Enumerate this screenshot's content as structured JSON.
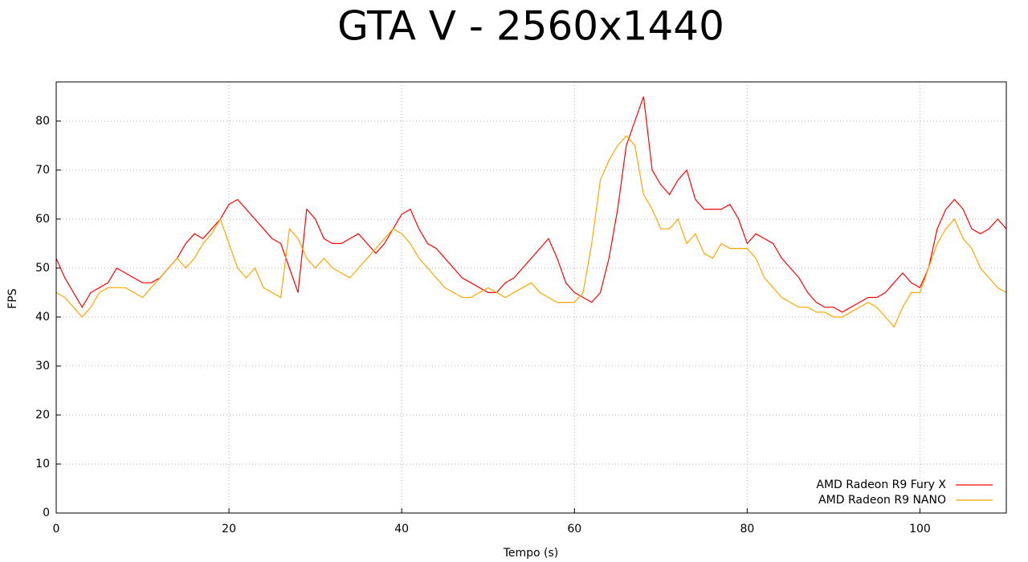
{
  "chart_data": {
    "type": "line",
    "title": "GTA V - 2560x1440",
    "xlabel": "Tempo (s)",
    "ylabel": "FPS",
    "x": [
      0,
      1,
      2,
      3,
      4,
      5,
      6,
      7,
      8,
      9,
      10,
      11,
      12,
      13,
      14,
      15,
      16,
      17,
      18,
      19,
      20,
      21,
      22,
      23,
      24,
      25,
      26,
      27,
      28,
      29,
      30,
      31,
      32,
      33,
      34,
      35,
      36,
      37,
      38,
      39,
      40,
      41,
      42,
      43,
      44,
      45,
      46,
      47,
      48,
      49,
      50,
      51,
      52,
      53,
      54,
      55,
      56,
      57,
      58,
      59,
      60,
      61,
      62,
      63,
      64,
      65,
      66,
      67,
      68,
      69,
      70,
      71,
      72,
      73,
      74,
      75,
      76,
      77,
      78,
      79,
      80,
      81,
      82,
      83,
      84,
      85,
      86,
      87,
      88,
      89,
      90,
      91,
      92,
      93,
      94,
      95,
      96,
      97,
      98,
      99,
      100,
      101,
      102,
      103,
      104,
      105,
      106,
      107,
      108,
      109,
      110
    ],
    "series": [
      {
        "name": "AMD Radeon R9 Fury X",
        "color": "#ff0000",
        "values": [
          52,
          48,
          45,
          42,
          45,
          46,
          47,
          50,
          49,
          48,
          47,
          47,
          48,
          50,
          52,
          55,
          57,
          56,
          58,
          60,
          63,
          64,
          62,
          60,
          58,
          56,
          55,
          50,
          45,
          62,
          60,
          56,
          55,
          55,
          56,
          57,
          55,
          53,
          55,
          58,
          61,
          62,
          58,
          55,
          54,
          52,
          50,
          48,
          47,
          46,
          45,
          45,
          47,
          48,
          50,
          52,
          54,
          56,
          52,
          47,
          45,
          44,
          43,
          45,
          52,
          62,
          75,
          80,
          85,
          70,
          67,
          65,
          68,
          70,
          64,
          62,
          62,
          62,
          63,
          60,
          55,
          57,
          56,
          55,
          52,
          50,
          48,
          45,
          43,
          42,
          42,
          41,
          42,
          43,
          44,
          44,
          45,
          47,
          49,
          47,
          46,
          50,
          58,
          62,
          64,
          62,
          58,
          57,
          58,
          60,
          58
        ]
      },
      {
        "name": "AMD Radeon R9 NANO",
        "color": "#ffa500",
        "values": [
          45,
          44,
          42,
          40,
          42,
          45,
          46,
          46,
          46,
          45,
          44,
          46,
          48,
          50,
          52,
          50,
          52,
          55,
          57,
          60,
          55,
          50,
          48,
          50,
          46,
          45,
          44,
          58,
          56,
          52,
          50,
          52,
          50,
          49,
          48,
          50,
          52,
          54,
          56,
          58,
          57,
          55,
          52,
          50,
          48,
          46,
          45,
          44,
          44,
          45,
          46,
          45,
          44,
          45,
          46,
          47,
          45,
          44,
          43,
          43,
          43,
          45,
          55,
          68,
          72,
          75,
          77,
          75,
          65,
          62,
          58,
          58,
          60,
          55,
          57,
          53,
          52,
          55,
          54,
          54,
          54,
          52,
          48,
          46,
          44,
          43,
          42,
          42,
          41,
          41,
          40,
          40,
          41,
          42,
          43,
          42,
          40,
          38,
          42,
          45,
          45,
          50,
          55,
          58,
          60,
          56,
          54,
          50,
          48,
          46,
          45
        ]
      }
    ],
    "xlim": [
      0,
      110
    ],
    "xticks": [
      0,
      20,
      40,
      60,
      80,
      100
    ],
    "ylim": [
      0,
      88
    ],
    "yticks": [
      0,
      10,
      20,
      30,
      40,
      50,
      60,
      70,
      80
    ],
    "grid": true,
    "legend": "lower right"
  }
}
